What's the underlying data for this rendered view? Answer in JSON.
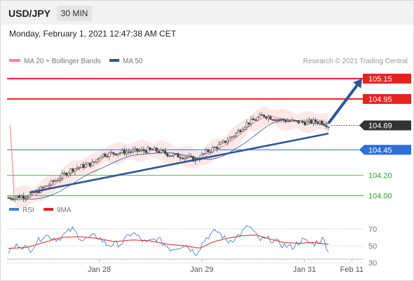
{
  "header": {
    "symbol": "USD/JPY",
    "timeframe": "30 MIN"
  },
  "datetime": "Monday, February 1, 2021 12:47:38 AM CET",
  "colors": {
    "resistance": "#e8231e",
    "support": "#2f6fd6",
    "target": "#2ca02c",
    "price_tag": "#333333",
    "ma20": "#f08a8a",
    "ma50": "#2f5597",
    "bollinger_fill": "#fde4e4",
    "rsi": "#4a7fd4",
    "rsi_ma": "#e8231e"
  },
  "chart_data": [
    {
      "type": "candlestick",
      "legend": [
        {
          "name": "MA 20 + Bollinger Bands",
          "color": "#f08a8a"
        },
        {
          "name": "MA 50",
          "color": "#2f5597"
        }
      ],
      "credit": "Research © 2021 Trading Central",
      "ylim": [
        103.92,
        105.26
      ],
      "x_ticks": [
        {
          "label": "Jan 28",
          "t": 0.257
        },
        {
          "label": "Jan 29",
          "t": 0.547
        },
        {
          "label": "Jan 31",
          "t": 0.837
        },
        {
          "label": "Feb 11",
          "t": 0.971
        }
      ],
      "levels": [
        {
          "label": "105.15",
          "value": 105.15,
          "kind": "resistance"
        },
        {
          "label": "104.95",
          "value": 104.95,
          "kind": "resistance"
        },
        {
          "label": "104.69",
          "value": 104.69,
          "kind": "last_price"
        },
        {
          "label": "104.45",
          "value": 104.45,
          "kind": "support"
        },
        {
          "label": "104.20",
          "value": 104.2,
          "kind": "target"
        },
        {
          "label": "104.00",
          "value": 104.0,
          "kind": "target"
        }
      ],
      "trendline": {
        "from": {
          "t": 0.06,
          "value": 104.03
        },
        "to": {
          "t": 0.905,
          "value": 104.61
        }
      },
      "forecast_arrow": {
        "from": {
          "t": 0.905,
          "value": 104.71
        },
        "to": {
          "t": 1.0,
          "value": 105.15
        }
      },
      "price_path": [
        [
          0.0,
          103.98
        ],
        [
          0.06,
          104.0
        ],
        [
          0.12,
          104.12
        ],
        [
          0.18,
          104.26
        ],
        [
          0.24,
          104.32
        ],
        [
          0.26,
          104.4
        ],
        [
          0.33,
          104.43
        ],
        [
          0.41,
          104.45
        ],
        [
          0.46,
          104.4
        ],
        [
          0.5,
          104.38
        ],
        [
          0.53,
          104.35
        ],
        [
          0.56,
          104.43
        ],
        [
          0.6,
          104.5
        ],
        [
          0.64,
          104.6
        ],
        [
          0.67,
          104.7
        ],
        [
          0.72,
          104.79
        ],
        [
          0.76,
          104.75
        ],
        [
          0.8,
          104.73
        ],
        [
          0.84,
          104.72
        ],
        [
          0.88,
          104.73
        ],
        [
          0.905,
          104.69
        ]
      ]
    },
    {
      "type": "line",
      "legend": [
        {
          "name": "RSI",
          "color": "#4a7fd4"
        },
        {
          "name": "9MA",
          "color": "#e8231e"
        }
      ],
      "ylim": [
        25,
        85
      ],
      "y_ticks": [
        70,
        50,
        30
      ],
      "rsi_path": [
        [
          0.0,
          43
        ],
        [
          0.03,
          52
        ],
        [
          0.06,
          45
        ],
        [
          0.1,
          63
        ],
        [
          0.14,
          58
        ],
        [
          0.18,
          70
        ],
        [
          0.21,
          57
        ],
        [
          0.25,
          62
        ],
        [
          0.28,
          51
        ],
        [
          0.32,
          53
        ],
        [
          0.35,
          66
        ],
        [
          0.39,
          53
        ],
        [
          0.42,
          59
        ],
        [
          0.46,
          46
        ],
        [
          0.5,
          52
        ],
        [
          0.53,
          41
        ],
        [
          0.56,
          60
        ],
        [
          0.59,
          68
        ],
        [
          0.62,
          55
        ],
        [
          0.65,
          62
        ],
        [
          0.68,
          74
        ],
        [
          0.71,
          57
        ],
        [
          0.74,
          58
        ],
        [
          0.77,
          52
        ],
        [
          0.8,
          48
        ],
        [
          0.83,
          57
        ],
        [
          0.86,
          52
        ],
        [
          0.89,
          58
        ],
        [
          0.905,
          45
        ]
      ],
      "ma_path": [
        [
          0.0,
          47
        ],
        [
          0.05,
          48
        ],
        [
          0.1,
          54
        ],
        [
          0.15,
          60
        ],
        [
          0.2,
          61
        ],
        [
          0.25,
          59
        ],
        [
          0.3,
          55
        ],
        [
          0.35,
          57
        ],
        [
          0.4,
          56
        ],
        [
          0.45,
          52
        ],
        [
          0.5,
          50
        ],
        [
          0.54,
          47
        ],
        [
          0.58,
          55
        ],
        [
          0.62,
          59
        ],
        [
          0.66,
          62
        ],
        [
          0.7,
          63
        ],
        [
          0.74,
          58
        ],
        [
          0.78,
          54
        ],
        [
          0.82,
          53
        ],
        [
          0.86,
          54
        ],
        [
          0.905,
          52
        ]
      ]
    }
  ]
}
